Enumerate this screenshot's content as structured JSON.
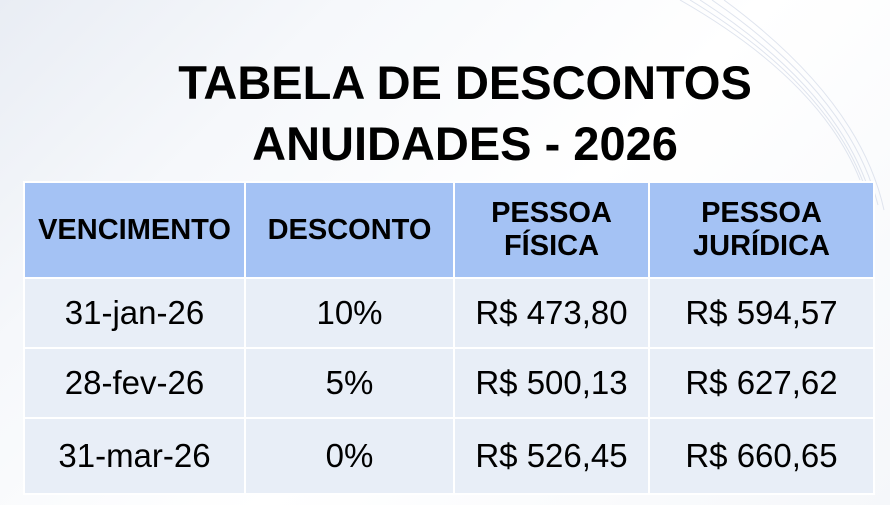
{
  "title": {
    "line1": "TABELA DE DESCONTOS",
    "line2": "ANUIDADES - 2026"
  },
  "colors": {
    "header_bg": "#a4c2f4",
    "row_bg": "#e8eef7"
  },
  "table": {
    "headers": [
      {
        "line1": "VENCIMENTO",
        "line2": ""
      },
      {
        "line1": "DESCONTO",
        "line2": ""
      },
      {
        "line1": "PESSOA",
        "line2": "FÍSICA"
      },
      {
        "line1": "PESSOA",
        "line2": "JURÍDICA"
      }
    ],
    "rows": [
      [
        "31-jan-26",
        "10%",
        "R$ 473,80",
        "R$ 594,57"
      ],
      [
        "28-fev-26",
        "5%",
        "R$ 500,13",
        "R$ 627,62"
      ],
      [
        "31-mar-26",
        "0%",
        "R$ 526,45",
        "R$ 660,65"
      ]
    ]
  }
}
